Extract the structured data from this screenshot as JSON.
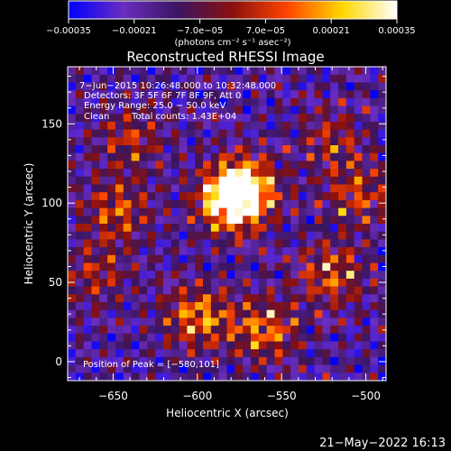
{
  "chart_data": {
    "type": "heatmap",
    "title": "Reconstructed RHESSI Image",
    "xlabel": "Heliocentric X (arcsec)",
    "ylabel": "Heliocentric Y (arcsec)",
    "xlim": [
      -677,
      -488
    ],
    "ylim": [
      -12,
      186
    ],
    "x_ticks": [
      {
        "value": -650,
        "label": "−650"
      },
      {
        "value": -600,
        "label": "−600"
      },
      {
        "value": -550,
        "label": "−550"
      },
      {
        "value": -500,
        "label": "−500"
      }
    ],
    "y_ticks": [
      {
        "value": 0,
        "label": "0"
      },
      {
        "value": 50,
        "label": "50"
      },
      {
        "value": 100,
        "label": "100"
      },
      {
        "value": 150,
        "label": "150"
      }
    ],
    "colorbar": {
      "range": [
        -0.00035,
        0.00035
      ],
      "tick_labels": [
        "−0.00035",
        "−0.00021",
        "−7.0e−05",
        "7.0e−05",
        "0.00021",
        "0.00035"
      ],
      "unit_label": "(photons cm⁻² s⁻¹ asec⁻²)",
      "colors": [
        "#0000ff",
        "#6a2dc0",
        "#3a1560",
        "#8a1010",
        "#ff4500",
        "#ffd700",
        "#ffffff"
      ]
    },
    "annotations": [
      "7−Jun−2015 10:26:48.000 to 10:32:48.000",
      "Detectors: 3F 5F 6F 7F 8F 9F, Att 0",
      "Energy Range: 25.0 − 50.0 keV",
      "Clean",
      "Total counts: 1.43E+04"
    ],
    "peak_label": "Position of Peak = [−580,101]",
    "peak_position": [
      -580,
      101
    ],
    "sources": [
      {
        "x": -580,
        "y": 101,
        "intensity": 1.0
      },
      {
        "x": -572,
        "y": 110,
        "intensity": 0.8
      },
      {
        "x": -600,
        "y": 28,
        "intensity": 0.7
      },
      {
        "x": -560,
        "y": 20,
        "intensity": 0.65
      },
      {
        "x": -648,
        "y": 95,
        "intensity": 0.55
      },
      {
        "x": -520,
        "y": 55,
        "intensity": 0.6
      },
      {
        "x": -505,
        "y": 105,
        "intensity": 0.5
      },
      {
        "x": -640,
        "y": 140,
        "intensity": 0.45
      },
      {
        "x": -520,
        "y": 140,
        "intensity": 0.4
      },
      {
        "x": -660,
        "y": 55,
        "intensity": 0.4
      }
    ]
  },
  "footer_timestamp": "21−May−2022 16:13"
}
